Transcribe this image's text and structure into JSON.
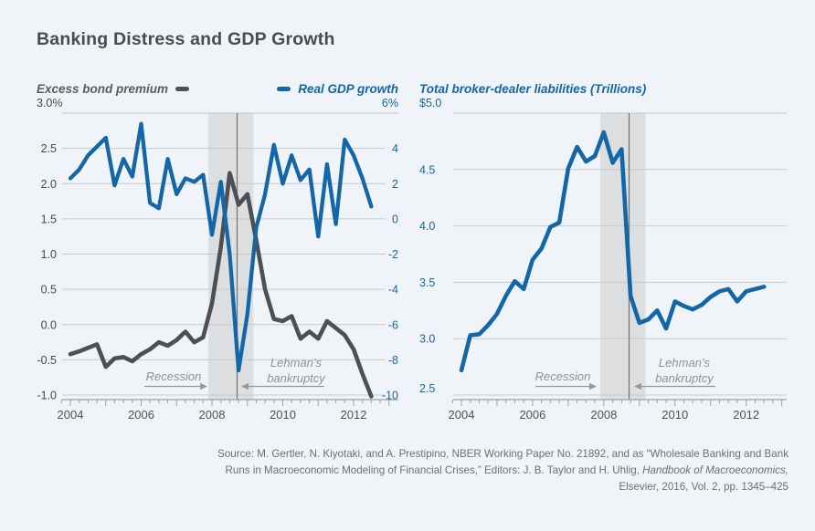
{
  "page": {
    "title": "Banking Distress and GDP Growth"
  },
  "colors": {
    "background": "#f0f4f8",
    "recession_band": "#dcdedf",
    "gridline": "#c6c9cc",
    "axis": "#9b9ea3",
    "lehman_line": "#717275",
    "blue": "#1366a7",
    "dark_gray_line": "#4e4f52",
    "title_text": "#4a4b4f",
    "annotation_text": "#8f9194",
    "footer_text": "#6d6f73"
  },
  "chart_data": [
    {
      "type": "line",
      "panel": "left",
      "x_start": 2004.0,
      "x_step_years": 0.25,
      "x_tick_years": [
        2004,
        2006,
        2008,
        2010,
        2012
      ],
      "x_tick_labels": [
        "2004",
        "2006",
        "2008",
        "2010",
        "2012"
      ],
      "left_axis": {
        "title": "Excess bond premium",
        "range": [
          -1.0,
          3.0
        ],
        "tick_labels": [
          "3.0%",
          "2.5",
          "2.0",
          "1.5",
          "1.0",
          "0.5",
          "0.0",
          "-0.5",
          "-1.0"
        ],
        "tick_values": [
          3.0,
          2.5,
          2.0,
          1.5,
          1.0,
          0.5,
          0.0,
          -0.5,
          -1.0
        ]
      },
      "right_axis": {
        "title": "Real GDP growth",
        "range": [
          -10,
          6
        ],
        "tick_labels": [
          "6%",
          "4",
          "2",
          "0",
          "-2",
          "-4",
          "-6",
          "-8",
          "-10"
        ],
        "tick_values": [
          6,
          4,
          2,
          0,
          -2,
          -4,
          -6,
          -8,
          -10
        ]
      },
      "series": [
        {
          "name": "Excess bond premium",
          "axis": "left",
          "color": "#4e4f52",
          "values": [
            -0.42,
            -0.38,
            -0.33,
            -0.28,
            -0.6,
            -0.48,
            -0.46,
            -0.52,
            -0.42,
            -0.35,
            -0.25,
            -0.3,
            -0.22,
            -0.1,
            -0.25,
            -0.18,
            0.3,
            1.1,
            2.15,
            1.7,
            1.85,
            1.2,
            0.5,
            0.08,
            0.05,
            0.12,
            -0.2,
            -0.1,
            -0.2,
            0.05,
            -0.05,
            -0.15,
            -0.35,
            -0.7,
            -1.02
          ]
        },
        {
          "name": "Real GDP growth",
          "axis": "right",
          "color": "#1366a7",
          "values": [
            2.3,
            2.8,
            3.6,
            4.1,
            4.6,
            1.9,
            3.4,
            2.4,
            5.4,
            0.9,
            0.6,
            3.4,
            1.4,
            2.3,
            2.1,
            2.5,
            -0.9,
            2.1,
            -2.0,
            -8.6,
            -5.4,
            -0.5,
            1.4,
            4.2,
            2.0,
            3.6,
            2.2,
            2.8,
            -1.0,
            3.1,
            -0.3,
            4.5,
            3.6,
            2.3,
            0.7
          ]
        }
      ],
      "recession_band_years": [
        2007.9,
        2009.17
      ],
      "lehman_line_year": 2008.71,
      "annotations": {
        "recession": "Recession",
        "lehman": [
          "Lehman’s",
          "bankruptcy"
        ]
      }
    },
    {
      "type": "line",
      "panel": "right",
      "x_start": 2004.0,
      "x_step_years": 0.25,
      "x_tick_years": [
        2004,
        2006,
        2008,
        2010,
        2012
      ],
      "x_tick_labels": [
        "2004",
        "2006",
        "2008",
        "2010",
        "2012"
      ],
      "y_axis": {
        "title": "Total broker-dealer liabilities (Trillions)",
        "range": [
          2.5,
          5.0
        ],
        "tick_labels": [
          "$5.0",
          "4.5",
          "4.0",
          "3.5",
          "3.0",
          "2.5"
        ],
        "tick_values": [
          5.0,
          4.5,
          4.0,
          3.5,
          3.0,
          2.5
        ]
      },
      "series": [
        {
          "name": "Total broker-dealer liabilities",
          "color": "#1366a7",
          "values": [
            2.72,
            3.03,
            3.04,
            3.12,
            3.22,
            3.38,
            3.51,
            3.44,
            3.7,
            3.8,
            3.99,
            4.03,
            4.51,
            4.7,
            4.57,
            4.62,
            4.83,
            4.56,
            4.68,
            3.38,
            3.14,
            3.17,
            3.25,
            3.09,
            3.33,
            3.29,
            3.26,
            3.3,
            3.37,
            3.42,
            3.44,
            3.33,
            3.42,
            3.44,
            3.46
          ]
        }
      ],
      "recession_band_years": [
        2007.9,
        2009.17
      ],
      "lehman_line_year": 2008.71,
      "annotations": {
        "recession": "Recession",
        "lehman": [
          "Lehman’s",
          "bankruptcy"
        ]
      }
    }
  ],
  "footer": {
    "line1": "Source: M. Gertler, N. Kiyotaki, and A. Prestipino, NBER Working Paper No. 21892, and as “Wholesale Banking and Bank",
    "line2_plain": "Runs in Macroeconomic Modeling of Financial Crises,” Editors: J. B. Taylor and H. Uhlig, ",
    "line2_italic": "Handbook of Macroeconomics,",
    "line3": "Elsevier, 2016, Vol. 2, pp. 1345–425"
  }
}
